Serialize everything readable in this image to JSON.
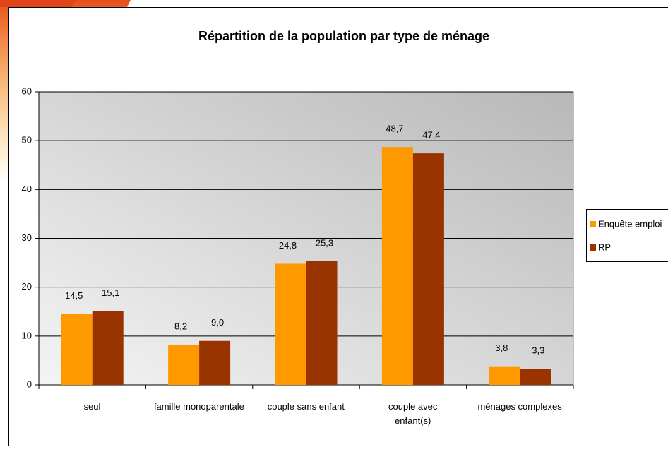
{
  "chart_data": {
    "type": "bar",
    "title": "Répartition de la population par type de ménage",
    "categories": [
      "seul",
      "famille monoparentale",
      "couple sans enfant",
      "couple avec\nenfant(s)",
      "ménages complexes"
    ],
    "series": [
      {
        "name": "Enquête emploi",
        "color": "#ff9900",
        "values": [
          14.5,
          8.2,
          24.8,
          48.7,
          3.8
        ],
        "value_labels": [
          "14,5",
          "8,2",
          "24,8",
          "48,7",
          "3,8"
        ]
      },
      {
        "name": "RP",
        "color": "#993300",
        "values": [
          15.1,
          9.0,
          25.3,
          47.4,
          3.3
        ],
        "value_labels": [
          "15,1",
          "9,0",
          "25,3",
          "47,4",
          "3,3"
        ]
      }
    ],
    "ylim": [
      0,
      60
    ],
    "yticks": [
      0,
      10,
      20,
      30,
      40,
      50,
      60
    ],
    "grid": true,
    "legend": "right"
  }
}
